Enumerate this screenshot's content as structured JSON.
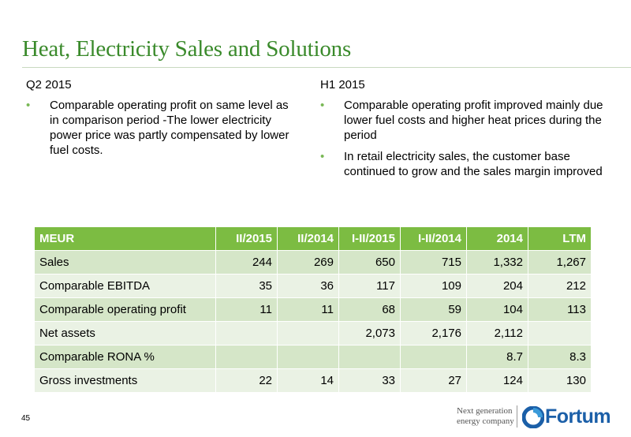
{
  "page": {
    "title": "Heat, Electricity Sales and Solutions",
    "page_number": "45"
  },
  "q2": {
    "heading": "Q2 2015",
    "bullets": [
      "Comparable operating profit on same level as in comparison period -The lower electricity power price was partly compensated by lower fuel costs."
    ]
  },
  "h1": {
    "heading": "H1 2015",
    "bullets": [
      "Comparable operating profit improved mainly due lower fuel costs and higher heat prices during the period",
      "In retail electricity sales, the customer base continued to grow and the sales margin improved"
    ]
  },
  "table": {
    "headers": [
      "MEUR",
      "II/2015",
      "II/2014",
      "I-II/2015",
      "I-II/2014",
      "2014",
      "LTM"
    ],
    "rows": [
      [
        "Sales",
        "244",
        "269",
        "650",
        "715",
        "1,332",
        "1,267"
      ],
      [
        "Comparable EBITDA",
        "35",
        "36",
        "117",
        "109",
        "204",
        "212"
      ],
      [
        "Comparable operating profit",
        "11",
        "11",
        "68",
        "59",
        "104",
        "113"
      ],
      [
        "Net assets",
        "",
        "",
        "2,073",
        "2,176",
        "2,112",
        ""
      ],
      [
        "Comparable RONA %",
        "",
        "",
        "",
        "",
        "8.7",
        "8.3"
      ],
      [
        "Gross investments",
        "22",
        "14",
        "33",
        "27",
        "124",
        "130"
      ]
    ]
  },
  "footer": {
    "tagline_line1": "Next generation",
    "tagline_line2": "energy company",
    "brand": "Fortum",
    "brand_color": "#1b5fa8"
  },
  "colors": {
    "title": "#3a8a2b",
    "header_bg": "#7cbc42",
    "row_band_a": "#d5e6c8",
    "row_band_b": "#eaf2e4",
    "bullet": "#79b856"
  }
}
